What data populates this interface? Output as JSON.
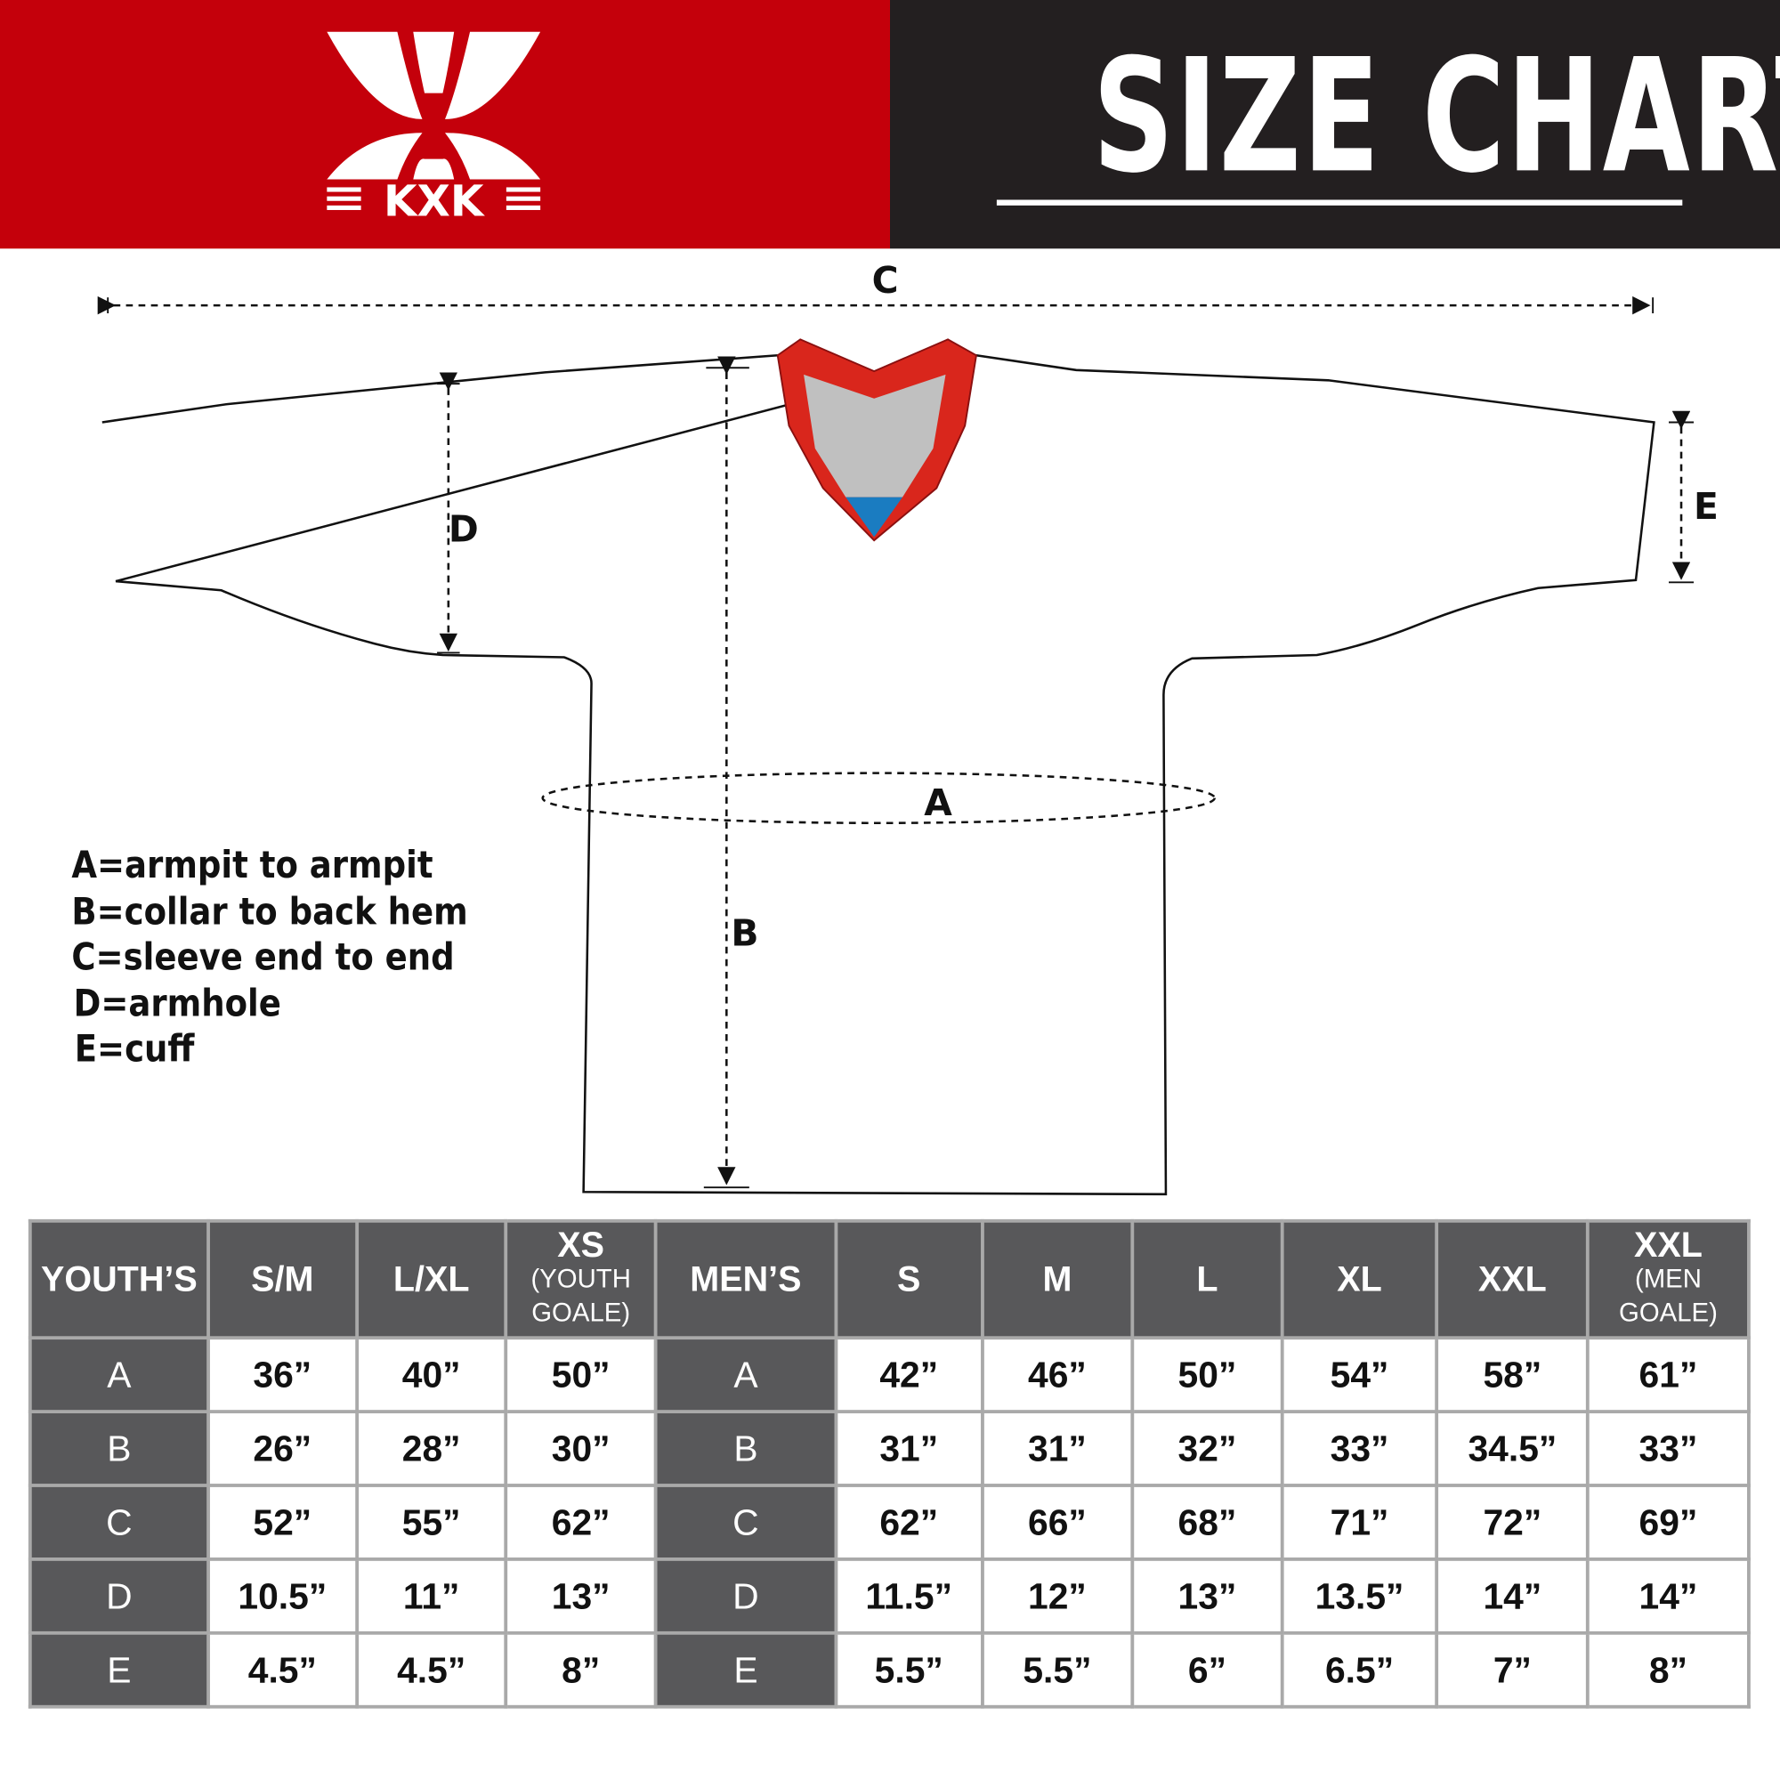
{
  "brand": {
    "logo_text": "KXK",
    "colors": {
      "red": "#c4000b",
      "dark": "#231f20",
      "table_header": "#58585a",
      "collar_blue": "#1a7cc1"
    }
  },
  "header": {
    "title": "SIZE CHART"
  },
  "diagram": {
    "labels": {
      "a": "A",
      "b": "B",
      "c": "C",
      "d": "D",
      "e": "E"
    }
  },
  "legend": [
    "A=armpit to armpit",
    "B=collar to back hem",
    "C=sleeve end to end",
    "D=armhole",
    "E=cuff"
  ],
  "table": {
    "headers": [
      {
        "main": "YOUTH’S"
      },
      {
        "main": "S/M"
      },
      {
        "main": "L/XL"
      },
      {
        "main": "XS",
        "sub": "(YOUTH GOALE)"
      },
      {
        "main": "MEN’S"
      },
      {
        "main": "S"
      },
      {
        "main": "M"
      },
      {
        "main": "L"
      },
      {
        "main": "XL"
      },
      {
        "main": "XXL"
      },
      {
        "main": "XXL",
        "sub": "(MEN GOALE)"
      }
    ],
    "rows": [
      [
        "A",
        "36”",
        "40”",
        "50”",
        "A",
        "42”",
        "46”",
        "50”",
        "54”",
        "58”",
        "61”"
      ],
      [
        "B",
        "26”",
        "28”",
        "30”",
        "B",
        "31”",
        "31”",
        "32”",
        "33”",
        "34.5”",
        "33”"
      ],
      [
        "C",
        "52”",
        "55”",
        "62”",
        "C",
        "62”",
        "66”",
        "68”",
        "71”",
        "72”",
        "69”"
      ],
      [
        "D",
        "10.5”",
        "11”",
        "13”",
        "D",
        "11.5”",
        "12”",
        "13”",
        "13.5”",
        "14”",
        "14”"
      ],
      [
        "E",
        "4.5”",
        "4.5”",
        "8”",
        "E",
        "5.5”",
        "5.5”",
        "6”",
        "6.5”",
        "7”",
        "8”"
      ]
    ]
  }
}
